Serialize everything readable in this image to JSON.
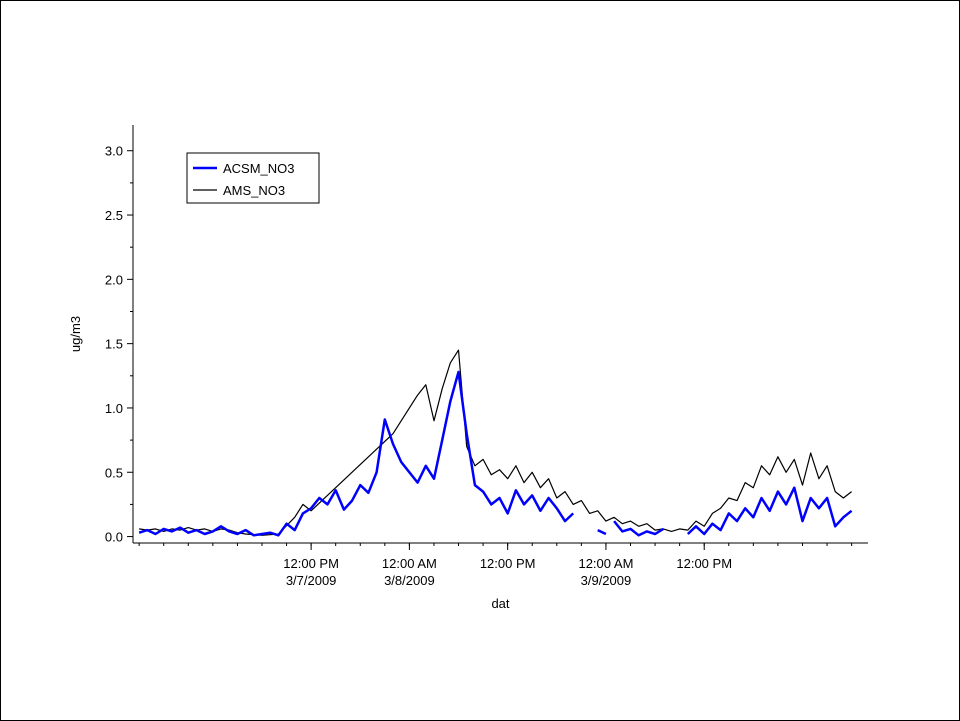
{
  "chart_data": {
    "type": "line",
    "title": "",
    "xlabel": "dat",
    "ylabel": "ug/m3",
    "ylim": [
      -0.05,
      3.2
    ],
    "xlim": [
      "2009-03-06 14:15",
      "2009-03-10 08:00"
    ],
    "y_ticks": [
      "0.0",
      "0.5",
      "1.0",
      "1.5",
      "2.0",
      "2.5",
      "3.0"
    ],
    "y_tick_values": [
      0.0,
      0.5,
      1.0,
      1.5,
      2.0,
      2.5,
      3.0
    ],
    "x_ticks": [
      {
        "value": "2009-03-07 12:00",
        "line1": "12:00 PM",
        "line2": "3/7/2009"
      },
      {
        "value": "2009-03-08 00:00",
        "line1": "12:00 AM",
        "line2": "3/8/2009"
      },
      {
        "value": "2009-03-08 12:00",
        "line1": "12:00 PM",
        "line2": ""
      },
      {
        "value": "2009-03-09 00:00",
        "line1": "12:00 AM",
        "line2": "3/9/2009"
      },
      {
        "value": "2009-03-09 12:00",
        "line1": "12:00 PM",
        "line2": ""
      }
    ],
    "grid": false,
    "legend_position": "top-left",
    "series": [
      {
        "name": "ACSM_NO3",
        "color": "#0000ff",
        "points": [
          [
            "2009-03-06 15:00",
            0.03
          ],
          [
            "2009-03-06 16:00",
            0.05
          ],
          [
            "2009-03-06 17:00",
            0.02
          ],
          [
            "2009-03-06 18:00",
            0.06
          ],
          [
            "2009-03-06 19:00",
            0.04
          ],
          [
            "2009-03-06 20:00",
            0.07
          ],
          [
            "2009-03-06 21:00",
            0.03
          ],
          [
            "2009-03-06 22:00",
            0.05
          ],
          [
            "2009-03-06 23:00",
            0.02
          ],
          [
            "2009-03-07 00:00",
            0.04
          ],
          [
            "2009-03-07 01:00",
            0.08
          ],
          [
            "2009-03-07 02:00",
            0.04
          ],
          [
            "2009-03-07 03:00",
            0.02
          ],
          [
            "2009-03-07 04:00",
            0.05
          ],
          [
            "2009-03-07 05:00",
            0.01
          ],
          [
            "2009-03-07 06:00",
            0.02
          ],
          [
            "2009-03-07 07:00",
            0.03
          ],
          [
            "2009-03-07 08:00",
            0.01
          ],
          [
            "2009-03-07 09:00",
            0.1
          ],
          [
            "2009-03-07 10:00",
            0.05
          ],
          [
            "2009-03-07 11:00",
            0.18
          ],
          [
            "2009-03-07 12:00",
            0.22
          ],
          [
            "2009-03-07 13:00",
            0.3
          ],
          [
            "2009-03-07 14:00",
            0.25
          ],
          [
            "2009-03-07 15:00",
            0.36
          ],
          [
            "2009-03-07 16:00",
            0.21
          ],
          [
            "2009-03-07 17:00",
            0.28
          ],
          [
            "2009-03-07 18:00",
            0.4
          ],
          [
            "2009-03-07 19:00",
            0.34
          ],
          [
            "2009-03-07 20:00",
            0.5
          ],
          [
            "2009-03-07 21:00",
            0.91
          ],
          [
            "2009-03-07 22:00",
            0.72
          ],
          [
            "2009-03-07 23:00",
            0.58
          ],
          [
            "2009-03-08 00:00",
            0.5
          ],
          [
            "2009-03-08 01:00",
            0.42
          ],
          [
            "2009-03-08 02:00",
            0.55
          ],
          [
            "2009-03-08 03:00",
            0.45
          ],
          [
            "2009-03-08 04:00",
            0.75
          ],
          [
            "2009-03-08 05:00",
            1.05
          ],
          [
            "2009-03-08 06:00",
            1.28
          ],
          [
            "2009-03-08 07:00",
            0.8
          ],
          [
            "2009-03-08 08:00",
            0.4
          ],
          [
            "2009-03-08 09:00",
            0.35
          ],
          [
            "2009-03-08 10:00",
            0.25
          ],
          [
            "2009-03-08 11:00",
            0.3
          ],
          [
            "2009-03-08 12:00",
            0.18
          ],
          [
            "2009-03-08 13:00",
            0.36
          ],
          [
            "2009-03-08 14:00",
            0.25
          ],
          [
            "2009-03-08 15:00",
            0.32
          ],
          [
            "2009-03-08 16:00",
            0.2
          ],
          [
            "2009-03-08 17:00",
            0.3
          ],
          [
            "2009-03-08 18:00",
            0.22
          ],
          [
            "2009-03-08 19:00",
            0.12
          ],
          [
            "2009-03-08 20:00",
            0.18
          ],
          null,
          [
            "2009-03-08 23:00",
            0.05
          ],
          [
            "2009-03-09 00:00",
            0.02
          ],
          null,
          [
            "2009-03-09 01:00",
            0.12
          ],
          [
            "2009-03-09 02:00",
            0.04
          ],
          [
            "2009-03-09 03:00",
            0.06
          ],
          [
            "2009-03-09 04:00",
            0.01
          ],
          [
            "2009-03-09 05:00",
            0.04
          ],
          [
            "2009-03-09 06:00",
            0.02
          ],
          [
            "2009-03-09 07:00",
            0.06
          ],
          null,
          [
            "2009-03-09 10:00",
            0.02
          ],
          [
            "2009-03-09 11:00",
            0.08
          ],
          [
            "2009-03-09 12:00",
            0.02
          ],
          [
            "2009-03-09 13:00",
            0.1
          ],
          [
            "2009-03-09 14:00",
            0.05
          ],
          [
            "2009-03-09 15:00",
            0.18
          ],
          [
            "2009-03-09 16:00",
            0.12
          ],
          [
            "2009-03-09 17:00",
            0.22
          ],
          [
            "2009-03-09 18:00",
            0.15
          ],
          [
            "2009-03-09 19:00",
            0.3
          ],
          [
            "2009-03-09 20:00",
            0.2
          ],
          [
            "2009-03-09 21:00",
            0.35
          ],
          [
            "2009-03-09 22:00",
            0.25
          ],
          [
            "2009-03-09 23:00",
            0.38
          ],
          [
            "2009-03-10 00:00",
            0.12
          ],
          [
            "2009-03-10 01:00",
            0.3
          ],
          [
            "2009-03-10 02:00",
            0.22
          ],
          [
            "2009-03-10 03:00",
            0.3
          ],
          [
            "2009-03-10 04:00",
            0.08
          ],
          [
            "2009-03-10 05:00",
            0.15
          ],
          [
            "2009-03-10 06:00",
            0.2
          ]
        ]
      },
      {
        "name": "AMS_NO3",
        "color": "#000000",
        "points": [
          [
            "2009-03-06 15:00",
            0.06
          ],
          [
            "2009-03-06 16:00",
            0.05
          ],
          [
            "2009-03-06 17:00",
            0.06
          ],
          [
            "2009-03-06 18:00",
            0.04
          ],
          [
            "2009-03-06 19:00",
            0.06
          ],
          [
            "2009-03-06 20:00",
            0.05
          ],
          [
            "2009-03-06 21:00",
            0.07
          ],
          [
            "2009-03-06 22:00",
            0.05
          ],
          [
            "2009-03-06 23:00",
            0.06
          ],
          [
            "2009-03-07 00:00",
            0.04
          ],
          [
            "2009-03-07 01:00",
            0.06
          ],
          [
            "2009-03-07 02:00",
            0.05
          ],
          [
            "2009-03-07 03:00",
            0.03
          ],
          [
            "2009-03-07 04:00",
            0.02
          ],
          [
            "2009-03-07 06:00",
            0.01
          ],
          [
            "2009-03-07 08:00",
            0.02
          ],
          [
            "2009-03-07 10:00",
            0.15
          ],
          [
            "2009-03-07 11:00",
            0.25
          ],
          [
            "2009-03-07 12:00",
            0.2
          ],
          [
            "2009-03-07 22:00",
            0.8
          ],
          [
            "2009-03-08 01:00",
            1.1
          ],
          [
            "2009-03-08 02:00",
            1.18
          ],
          [
            "2009-03-08 03:00",
            0.9
          ],
          [
            "2009-03-08 04:00",
            1.15
          ],
          [
            "2009-03-08 05:00",
            1.35
          ],
          [
            "2009-03-08 06:00",
            1.45
          ],
          [
            "2009-03-08 07:00",
            0.7
          ],
          [
            "2009-03-08 08:00",
            0.55
          ],
          [
            "2009-03-08 09:00",
            0.6
          ],
          [
            "2009-03-08 10:00",
            0.48
          ],
          [
            "2009-03-08 11:00",
            0.52
          ],
          [
            "2009-03-08 12:00",
            0.45
          ],
          [
            "2009-03-08 13:00",
            0.55
          ],
          [
            "2009-03-08 14:00",
            0.42
          ],
          [
            "2009-03-08 15:00",
            0.5
          ],
          [
            "2009-03-08 16:00",
            0.38
          ],
          [
            "2009-03-08 17:00",
            0.45
          ],
          [
            "2009-03-08 18:00",
            0.3
          ],
          [
            "2009-03-08 19:00",
            0.35
          ],
          [
            "2009-03-08 20:00",
            0.25
          ],
          [
            "2009-03-08 21:00",
            0.28
          ],
          [
            "2009-03-08 22:00",
            0.18
          ],
          [
            "2009-03-08 23:00",
            0.2
          ],
          [
            "2009-03-09 00:00",
            0.12
          ],
          [
            "2009-03-09 01:00",
            0.15
          ],
          [
            "2009-03-09 02:00",
            0.1
          ],
          [
            "2009-03-09 03:00",
            0.12
          ],
          [
            "2009-03-09 04:00",
            0.08
          ],
          [
            "2009-03-09 05:00",
            0.1
          ],
          [
            "2009-03-09 06:00",
            0.05
          ],
          [
            "2009-03-09 07:00",
            0.06
          ],
          [
            "2009-03-09 08:00",
            0.04
          ],
          [
            "2009-03-09 09:00",
            0.06
          ],
          [
            "2009-03-09 10:00",
            0.05
          ],
          [
            "2009-03-09 11:00",
            0.12
          ],
          [
            "2009-03-09 12:00",
            0.08
          ],
          [
            "2009-03-09 13:00",
            0.18
          ],
          [
            "2009-03-09 14:00",
            0.22
          ],
          [
            "2009-03-09 15:00",
            0.3
          ],
          [
            "2009-03-09 16:00",
            0.28
          ],
          [
            "2009-03-09 17:00",
            0.42
          ],
          [
            "2009-03-09 18:00",
            0.38
          ],
          [
            "2009-03-09 19:00",
            0.55
          ],
          [
            "2009-03-09 20:00",
            0.48
          ],
          [
            "2009-03-09 21:00",
            0.62
          ],
          [
            "2009-03-09 22:00",
            0.5
          ],
          [
            "2009-03-09 23:00",
            0.6
          ],
          [
            "2009-03-10 00:00",
            0.4
          ],
          [
            "2009-03-10 01:00",
            0.65
          ],
          [
            "2009-03-10 02:00",
            0.45
          ],
          [
            "2009-03-10 03:00",
            0.55
          ],
          [
            "2009-03-10 04:00",
            0.35
          ],
          [
            "2009-03-10 05:00",
            0.3
          ],
          [
            "2009-03-10 06:00",
            0.35
          ]
        ]
      }
    ]
  }
}
